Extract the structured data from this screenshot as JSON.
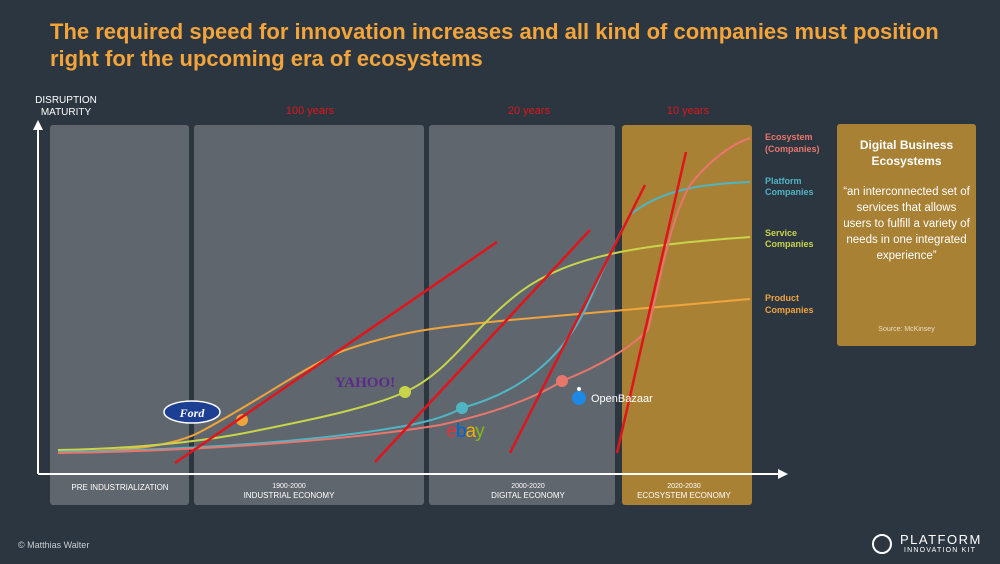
{
  "title": "The required speed for innovation increases and all kind of companies must position right for the upcoming era of ecosystems",
  "y_axis": {
    "line1": "DISRUPTION",
    "line2": "MATURITY"
  },
  "eras": [
    {
      "name": "PRE INDUSTRIALIZATION",
      "years": "",
      "span": ""
    },
    {
      "name": "INDUSTRIAL ECONOMY",
      "years": "1900-2000",
      "span": "100 years"
    },
    {
      "name": "DIGITAL ECONOMY",
      "years": "2000-2020",
      "span": "20 years"
    },
    {
      "name": "ECOSYSTEM ECONOMY",
      "years": "2020-2030",
      "span": "10 years"
    }
  ],
  "curves": [
    {
      "label1": "Ecosystem",
      "label2": "(Companies)",
      "color": "#e8766d"
    },
    {
      "label1": "Platform",
      "label2": "Companies",
      "color": "#4fb5c4"
    },
    {
      "label1": "Service",
      "label2": "Companies",
      "color": "#c8d44a"
    },
    {
      "label1": "Product",
      "label2": "Companies",
      "color": "#f0a43c"
    }
  ],
  "logos": {
    "ford": "Ford",
    "yahoo": "YAHOO!",
    "ebay": [
      "e",
      "b",
      "a",
      "y"
    ],
    "openbazaar": "OpenBazaar"
  },
  "definition": {
    "title": "Digital Business Ecosystems",
    "quote": "“an interconnected set of services that allows users to fulfill a variety of needs in one integrated experience”",
    "source": "Source: McKinsey"
  },
  "footer": {
    "copyright": "© Matthias Walter",
    "brand_main": "PLATFORM",
    "brand_sub": "INNOVATION KIT"
  },
  "colors": {
    "background": "#2c3640",
    "title": "#f3a43b",
    "disruption_line": "#e0151b",
    "era_box": "#8a8e94",
    "ecosystem_box": "#a98135"
  }
}
